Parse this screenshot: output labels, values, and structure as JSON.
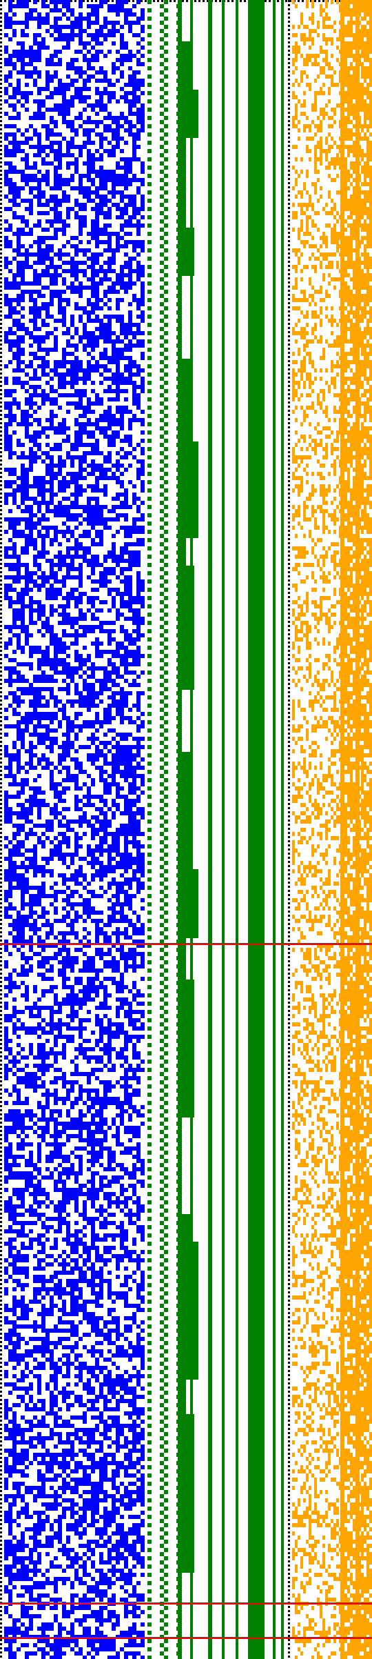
{
  "image": {
    "description_colors": {
      "background": "#ffffff",
      "left_bits": "#0000ff",
      "staircase": "#007f00",
      "right_bits": "#ffa500",
      "marker_lines": "#ff0000",
      "dotted_border": "#000000"
    },
    "marker_count": 3,
    "regions": [
      {
        "name": "left-bit-field",
        "color": "#0000ff"
      },
      {
        "name": "green-staircase",
        "color": "#007f00"
      },
      {
        "name": "green-vertical-bars",
        "color": "#007f00"
      },
      {
        "name": "right-bit-field",
        "color": "#ffa500"
      }
    ]
  }
}
